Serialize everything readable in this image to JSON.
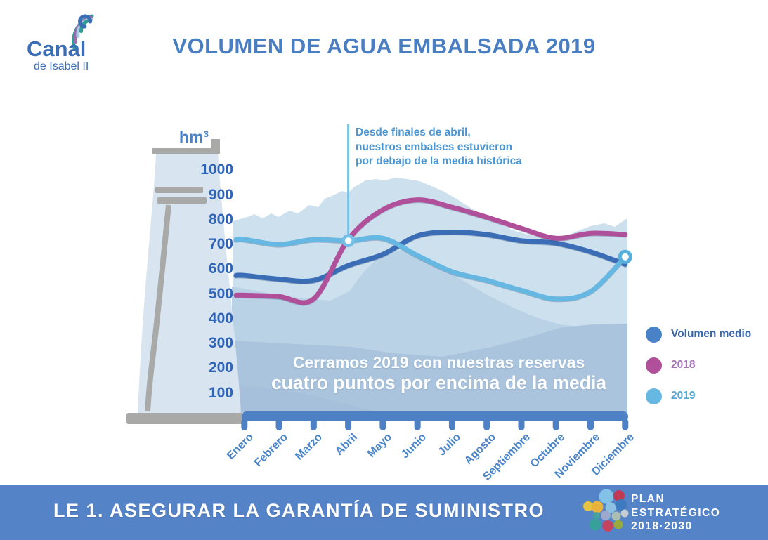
{
  "header": {
    "logo_title": "Canal",
    "logo_subtitle": "de Isabel II",
    "title": "VOLUMEN DE AGUA EMBALSADA 2019"
  },
  "chart_data": {
    "type": "line",
    "title": "VOLUMEN DE AGUA EMBALSADA 2019",
    "ylabel": "hm³",
    "xlabel": "",
    "ylim": [
      0,
      1050
    ],
    "y_ticks": [
      1000,
      900,
      800,
      700,
      600,
      500,
      400,
      300,
      200,
      100
    ],
    "grid": false,
    "legend_position": "right",
    "categories": [
      "Enero",
      "Febrero",
      "Marzo",
      "Abril",
      "Mayo",
      "Junio",
      "Julio",
      "Agosto",
      "Septiembre",
      "Octubre",
      "Noviembre",
      "Diciembre"
    ],
    "series": [
      {
        "name": "Volumen medio",
        "color": "#3a6db6",
        "legend_text_color": "#3a66ad",
        "values": [
          575,
          560,
          555,
          615,
          660,
          735,
          750,
          740,
          715,
          705,
          670,
          620
        ]
      },
      {
        "name": "2018",
        "color": "#b1509a",
        "legend_text_color": "#a873b8",
        "values": [
          495,
          490,
          480,
          720,
          840,
          880,
          850,
          810,
          765,
          725,
          745,
          740
        ]
      },
      {
        "name": "2019",
        "color": "#66b8e2",
        "legend_text_color": "#56a6d3",
        "values": [
          720,
          700,
          720,
          715,
          725,
          655,
          590,
          555,
          515,
          480,
          510,
          650
        ]
      }
    ],
    "markers": [
      {
        "series": "2019",
        "month_index": 3,
        "kind": "annotation-ring"
      },
      {
        "series": "2019",
        "month_index": 11,
        "kind": "end-ring"
      }
    ],
    "annotations": [
      {
        "lines": [
          "Desde finales de abril,",
          "nuestros embalses estuvieron",
          "por debajo de la media histórica"
        ],
        "attach_series": "2019",
        "attach_month_index": 3
      },
      {
        "lines": [
          "Cerramos 2019 con nuestras reservas",
          "cuatro puntos por encima de la media"
        ]
      }
    ]
  },
  "footer": {
    "label": "LE 1. ASEGURAR LA GARANTÍA DE SUMINISTRO",
    "plan_logo": {
      "line1": "PLAN",
      "line2": "ESTRATÉGICO",
      "line3": "2018·2030"
    }
  }
}
